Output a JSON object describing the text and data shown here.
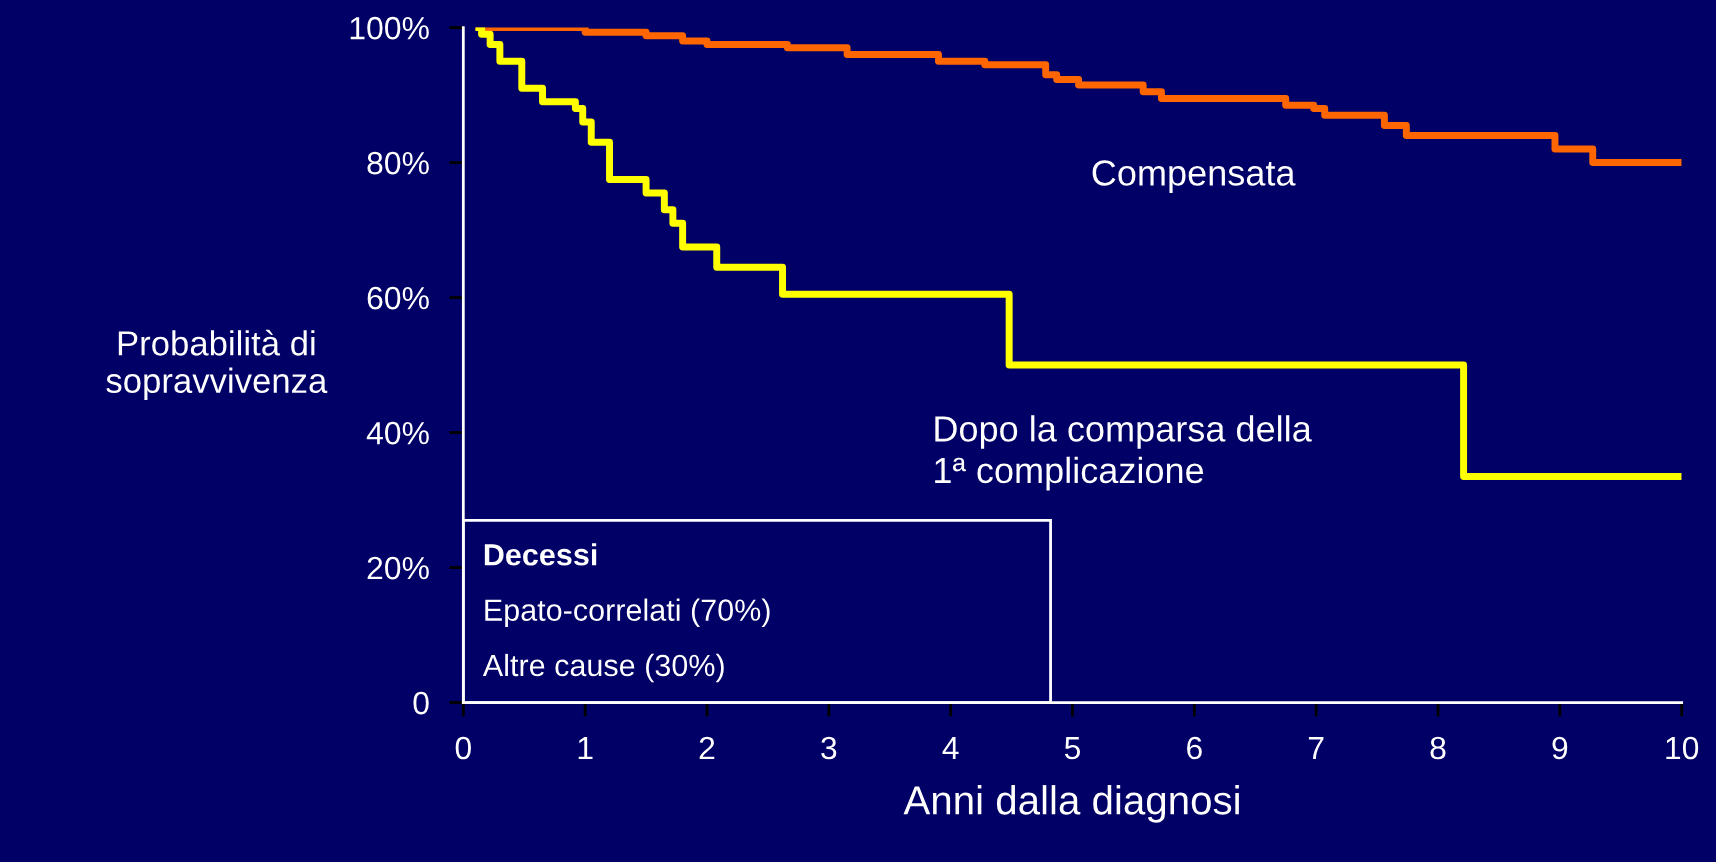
{
  "chart_data": {
    "type": "step",
    "xlabel": "Anni dalla diagnosi",
    "ylabel": "Probabilità di\nsopravvivenza",
    "xlim": [
      0,
      10
    ],
    "ylim": [
      0,
      100
    ],
    "xticks": [
      0,
      1,
      2,
      3,
      4,
      5,
      6,
      7,
      8,
      9,
      10
    ],
    "yticks": [
      {
        "value": 0,
        "label": "0"
      },
      {
        "value": 20,
        "label": "20%"
      },
      {
        "value": 40,
        "label": "40%"
      },
      {
        "value": 60,
        "label": "60%"
      },
      {
        "value": 80,
        "label": "80%"
      },
      {
        "value": 100,
        "label": "100%"
      }
    ],
    "grid": false,
    "legend": false,
    "marker": "none",
    "line_style": "solid",
    "series": [
      {
        "name": "Compensata",
        "color": "#ff6600",
        "x": [
          0.1,
          1.0,
          1.5,
          1.8,
          2.0,
          2.66,
          3.15,
          3.9,
          4.28,
          4.78,
          4.87,
          5.05,
          5.58,
          5.73,
          6.75,
          6.98,
          7.07,
          7.56,
          7.74,
          8.96,
          9.27,
          10
        ],
        "values": [
          100,
          99.3,
          98.8,
          98,
          97.5,
          97,
          96,
          95,
          94.5,
          93,
          92.3,
          91.5,
          90.5,
          89.5,
          88.5,
          88,
          87,
          85.5,
          84,
          82,
          80,
          80
        ]
      },
      {
        "name": "Dopo la comparsa della\n1ª complicazione",
        "color": "#ffff00",
        "x": [
          0.1,
          0.15,
          0.22,
          0.3,
          0.48,
          0.65,
          0.92,
          0.98,
          1.05,
          1.2,
          1.5,
          1.65,
          1.72,
          1.8,
          2.08,
          2.62,
          4.48,
          8.21,
          10
        ],
        "values": [
          100,
          99,
          97.5,
          95,
          91,
          89,
          88,
          86,
          83,
          77.5,
          75.5,
          73,
          71,
          67.5,
          64.5,
          60.5,
          50,
          33.5,
          33.5
        ]
      }
    ],
    "annotations": [
      "Decessi",
      "Epato-correlati (70%)",
      "Altre cause (30%)"
    ]
  }
}
